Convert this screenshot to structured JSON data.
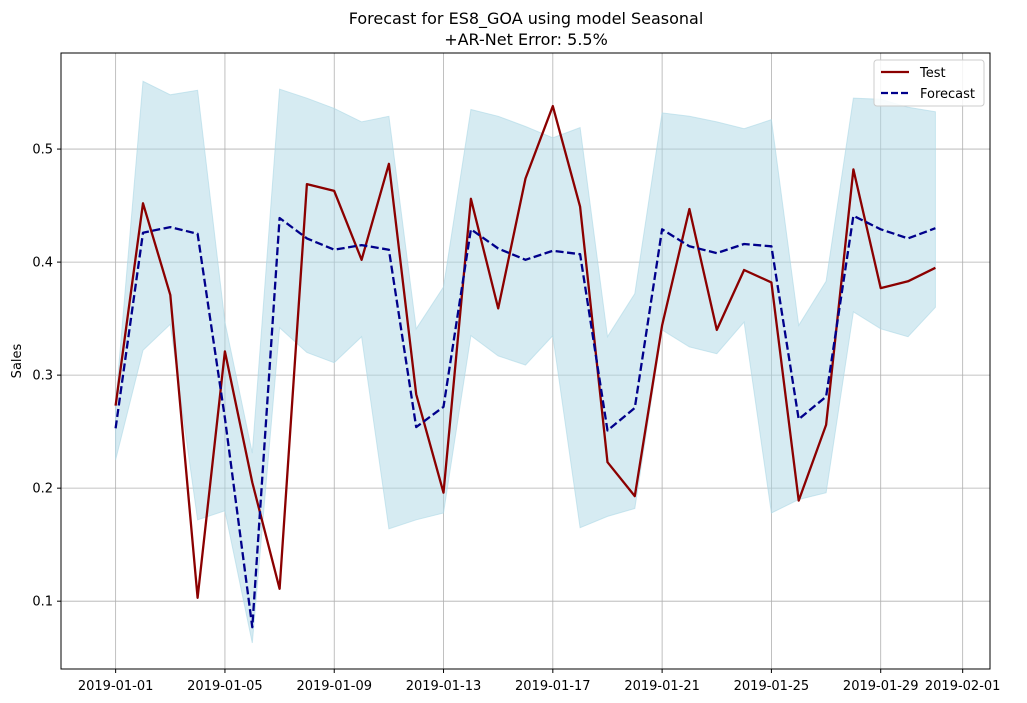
{
  "chart_data": {
    "type": "line",
    "title_line1": "Forecast for ES8_GOA using model Seasonal",
    "title_line2": "+AR-Net Error: 5.5%",
    "xlabel": "",
    "ylabel": "Sales",
    "grid": true,
    "legend_position": "top-right",
    "x_dates": [
      "2019-01-01",
      "2019-01-02",
      "2019-01-03",
      "2019-01-04",
      "2019-01-05",
      "2019-01-06",
      "2019-01-07",
      "2019-01-08",
      "2019-01-09",
      "2019-01-10",
      "2019-01-11",
      "2019-01-12",
      "2019-01-13",
      "2019-01-14",
      "2019-01-15",
      "2019-01-16",
      "2019-01-17",
      "2019-01-18",
      "2019-01-19",
      "2019-01-20",
      "2019-01-21",
      "2019-01-22",
      "2019-01-23",
      "2019-01-24",
      "2019-01-25",
      "2019-01-26",
      "2019-01-27",
      "2019-01-28",
      "2019-01-29",
      "2019-01-30",
      "2019-01-31"
    ],
    "xlim": [
      "2018-12-30",
      "2019-02-02"
    ],
    "ylim": [
      0.04,
      0.585
    ],
    "x_ticks": [
      "2019-01-01",
      "2019-01-05",
      "2019-01-09",
      "2019-01-13",
      "2019-01-17",
      "2019-01-21",
      "2019-01-25",
      "2019-01-29",
      "2019-02-01"
    ],
    "y_ticks": [
      0.1,
      0.2,
      0.3,
      0.4,
      0.5
    ],
    "y_tick_labels": [
      "0.1",
      "0.2",
      "0.3",
      "0.4",
      "0.5"
    ],
    "series": [
      {
        "name": "Test",
        "color": "#8b0000",
        "style": "solid",
        "values": [
          0.273,
          0.452,
          0.371,
          0.103,
          0.321,
          0.205,
          0.111,
          0.469,
          0.463,
          0.402,
          0.487,
          0.283,
          0.196,
          0.456,
          0.359,
          0.474,
          0.538,
          0.449,
          0.223,
          0.193,
          0.344,
          0.447,
          0.34,
          0.393,
          0.382,
          0.189,
          0.256,
          0.482,
          0.377,
          0.383,
          0.395
        ]
      },
      {
        "name": "Forecast",
        "color": "#00008b",
        "style": "dashed",
        "values": [
          0.253,
          0.426,
          0.431,
          0.425,
          0.262,
          0.077,
          0.439,
          0.421,
          0.411,
          0.415,
          0.411,
          0.254,
          0.272,
          0.429,
          0.412,
          0.402,
          0.41,
          0.407,
          0.251,
          0.271,
          0.429,
          0.414,
          0.408,
          0.416,
          0.414,
          0.261,
          0.281,
          0.441,
          0.429,
          0.421,
          0.43
        ]
      }
    ],
    "band": {
      "color": "#add8e6",
      "lower": [
        0.225,
        0.322,
        0.345,
        0.172,
        0.18,
        0.063,
        0.342,
        0.32,
        0.311,
        0.334,
        0.164,
        0.172,
        0.178,
        0.335,
        0.317,
        0.309,
        0.335,
        0.165,
        0.175,
        0.182,
        0.34,
        0.325,
        0.319,
        0.347,
        0.178,
        0.19,
        0.196,
        0.356,
        0.341,
        0.334,
        0.36
      ],
      "upper": [
        0.275,
        0.56,
        0.548,
        0.552,
        0.347,
        0.231,
        0.553,
        0.545,
        0.536,
        0.524,
        0.529,
        0.341,
        0.378,
        0.535,
        0.529,
        0.52,
        0.51,
        0.519,
        0.334,
        0.372,
        0.532,
        0.529,
        0.524,
        0.518,
        0.526,
        0.344,
        0.383,
        0.545,
        0.544,
        0.537,
        0.533
      ]
    }
  }
}
